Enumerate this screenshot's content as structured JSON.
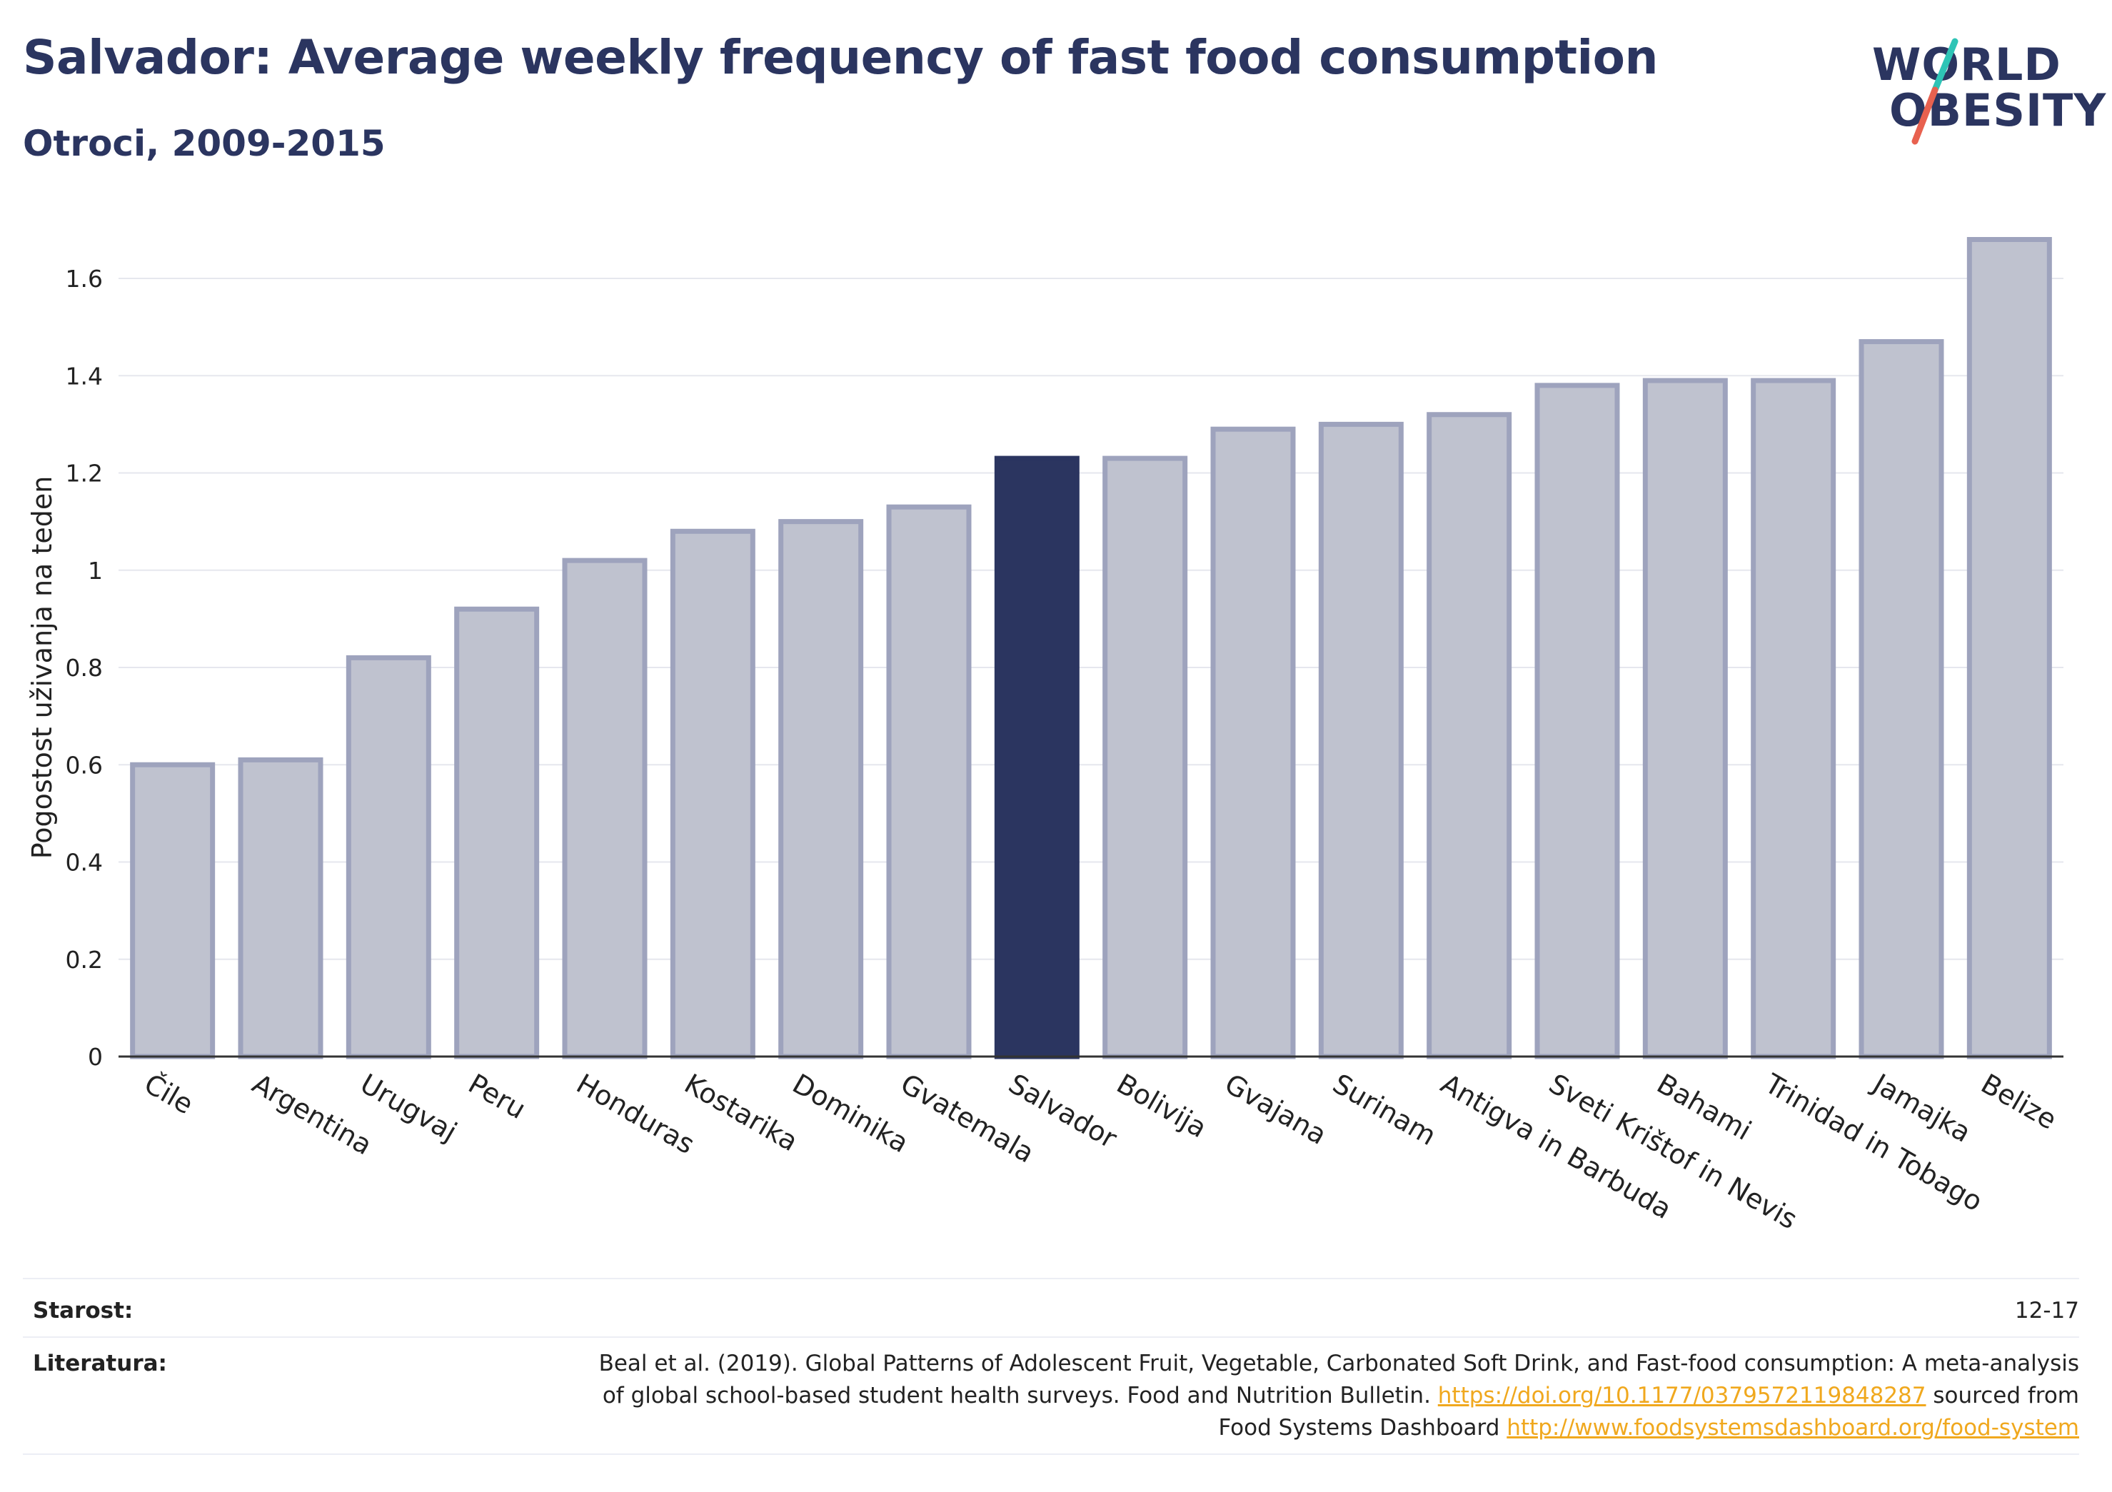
{
  "header": {
    "title": "Salvador: Average weekly frequency of fast food consumption",
    "subtitle": "Otroci, 2009-2015"
  },
  "logo": {
    "line1": "WORLD",
    "line2": "OBESITY",
    "accent_colors": [
      "#2ec4b6",
      "#e8614f"
    ]
  },
  "chart_data": {
    "type": "bar",
    "ylabel": "Pogostost uživanja na teden",
    "xlabel": "",
    "ylim": [
      0,
      1.7
    ],
    "yticks": [
      0,
      0.2,
      0.4,
      0.6,
      0.8,
      1,
      1.2,
      1.4,
      1.6
    ],
    "ytick_labels": [
      "0",
      "0.2",
      "0.4",
      "0.6",
      "0.8",
      "1",
      "1.2",
      "1.4",
      "1.6"
    ],
    "grid": true,
    "categories": [
      "Čile",
      "Argentina",
      "Urugvaj",
      "Peru",
      "Honduras",
      "Kostarika",
      "Dominika",
      "Gvatemala",
      "Salvador",
      "Bolivija",
      "Gvajana",
      "Surinam",
      "Antigva in Barbuda",
      "Sveti Krištof in Nevis",
      "Bahami",
      "Trinidad in Tobago",
      "Jamajka",
      "Belize"
    ],
    "values": [
      0.6,
      0.61,
      0.82,
      0.92,
      1.02,
      1.08,
      1.1,
      1.13,
      1.23,
      1.23,
      1.29,
      1.3,
      1.32,
      1.38,
      1.39,
      1.39,
      1.47,
      1.68
    ],
    "highlight": "Salvador",
    "colors": {
      "bar": "#bfc2cf",
      "bar_edge": "#9ea3bd",
      "highlight": "#2b3560"
    }
  },
  "footer": {
    "age_label": "Starost:",
    "age_value": "12-17",
    "ref_label": "Literatura:",
    "ref_line1": "Beal et al. (2019). Global Patterns of Adolescent Fruit, Vegetable, Carbonated Soft Drink, and Fast-food consumption: A meta-analysis",
    "ref_line2_text": "of global school-based student health surveys. Food and Nutrition Bulletin. ",
    "ref_line2_link": "https://doi.org/10.1177/0379572119848287",
    "ref_line2_after": " sourced from",
    "ref_line3_text": "Food Systems Dashboard ",
    "ref_line3_link": "http://www.foodsystemsdashboard.org/food-system"
  }
}
